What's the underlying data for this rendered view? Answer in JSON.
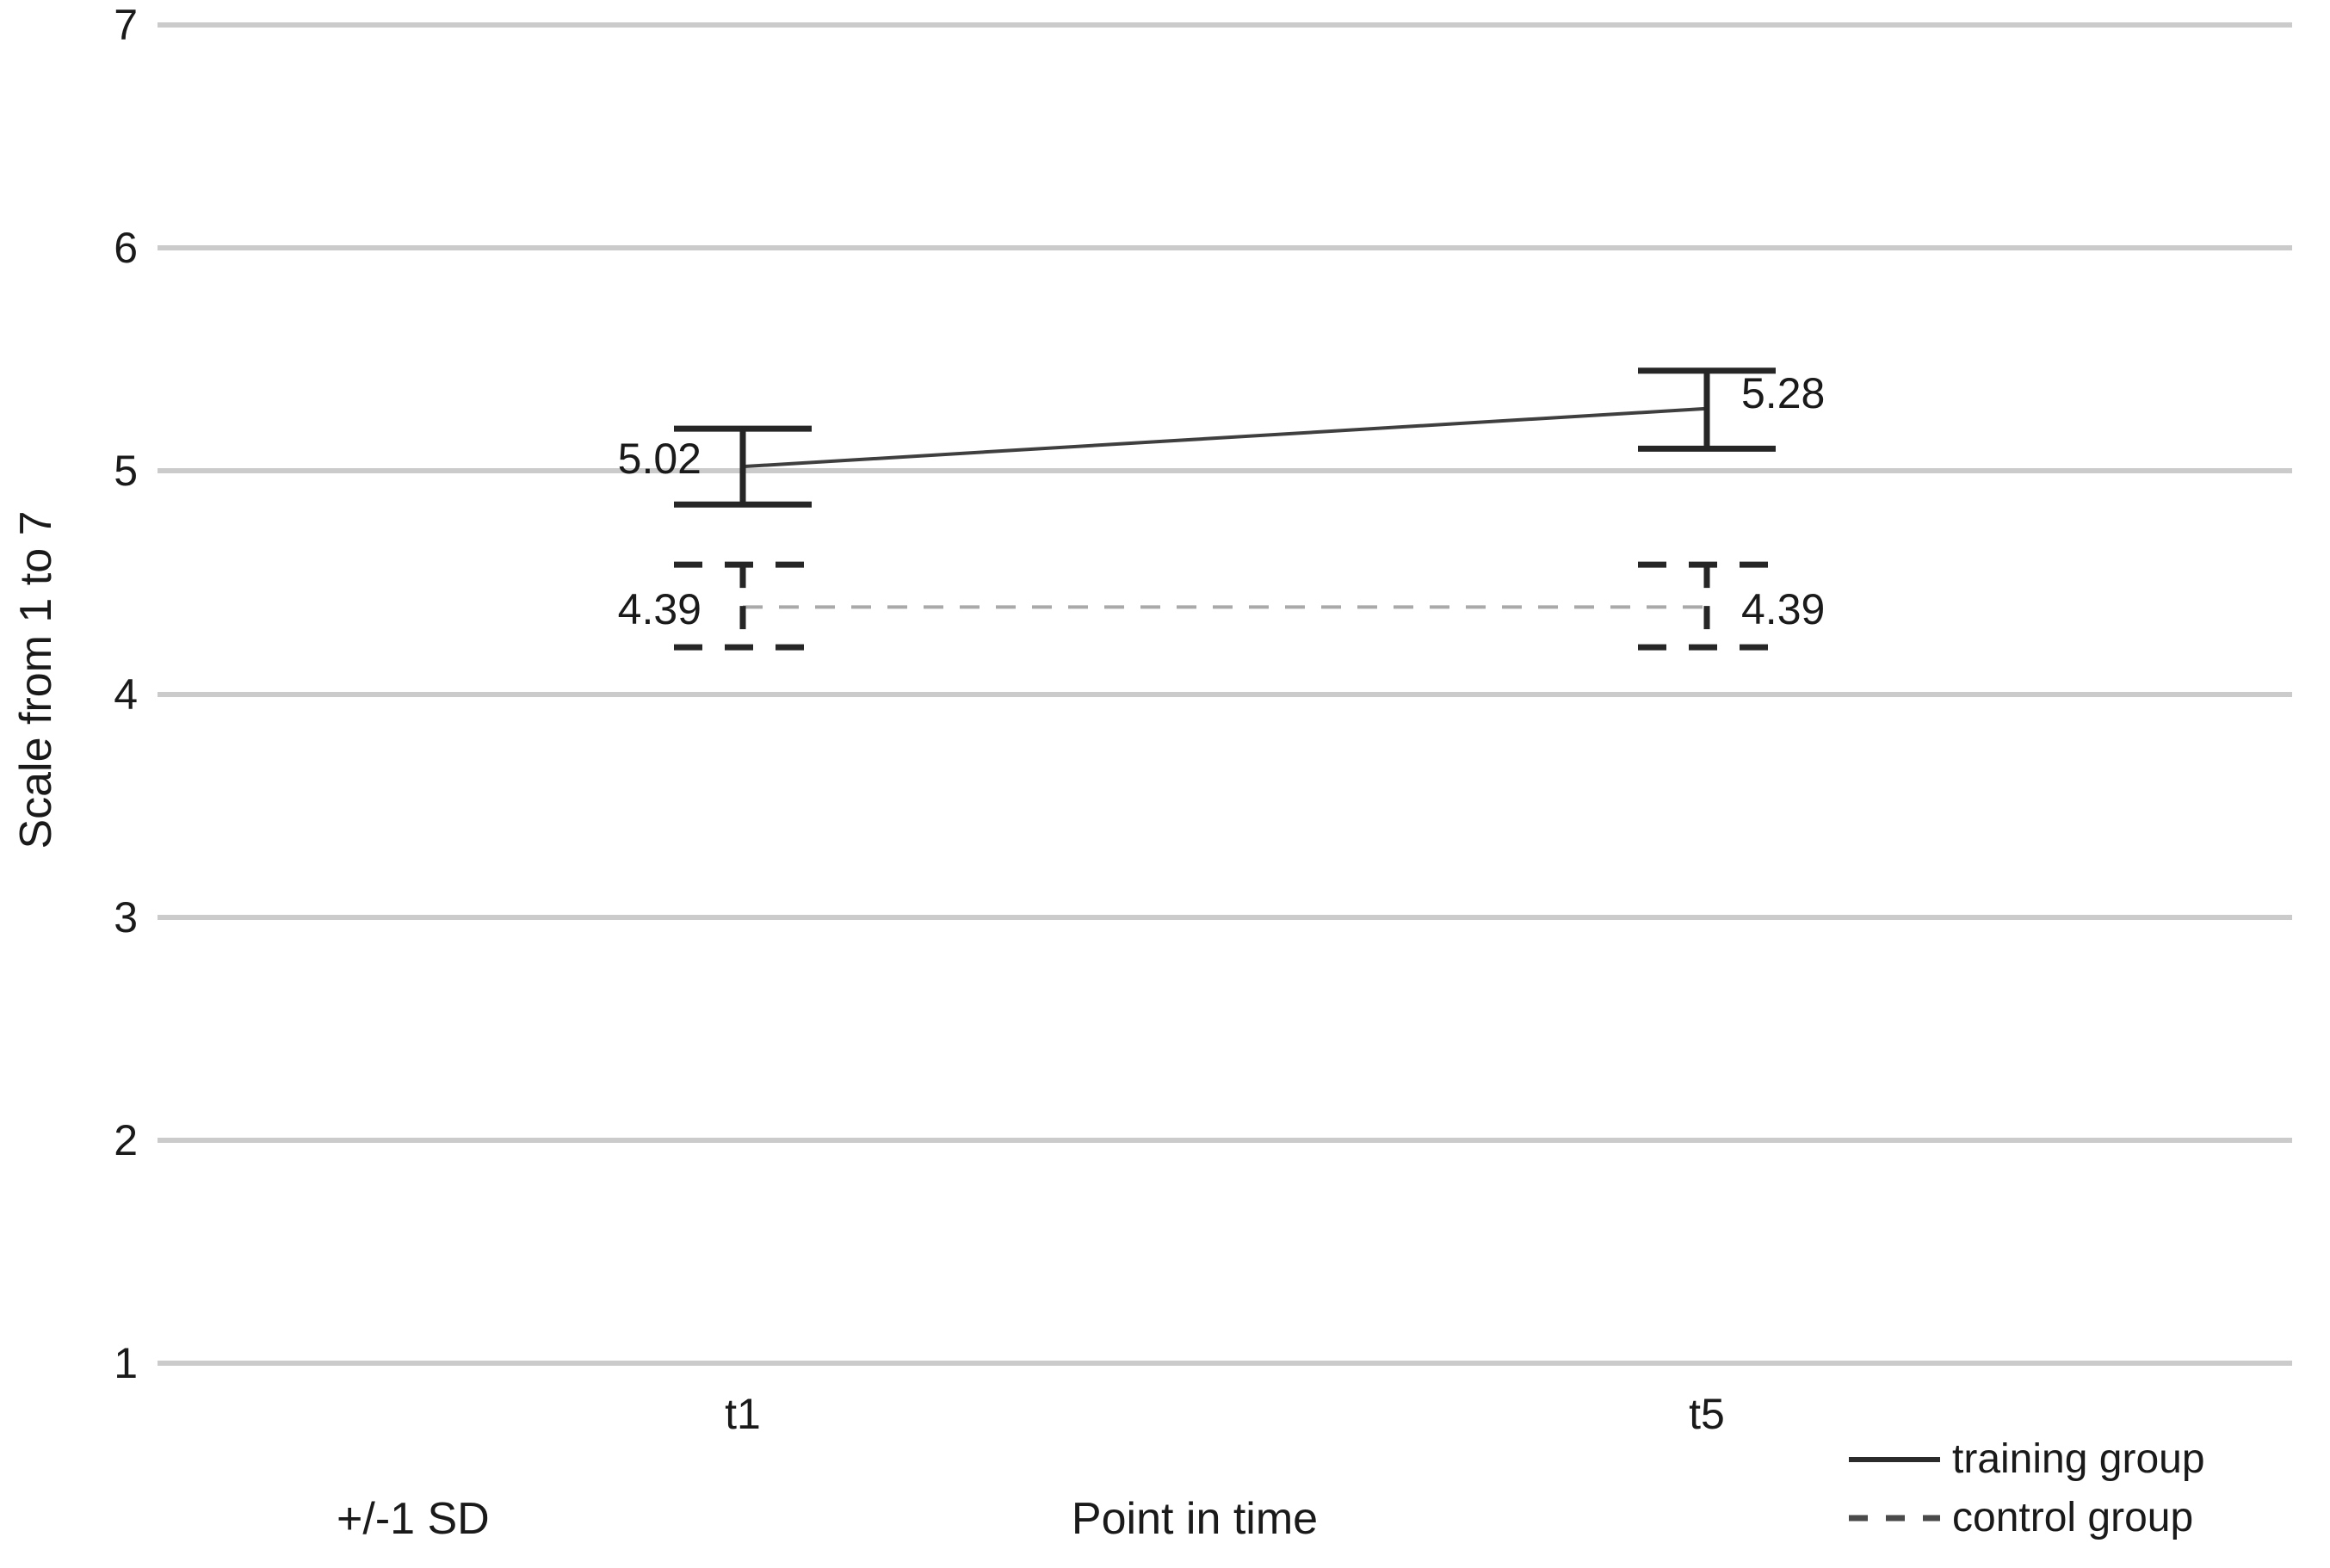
{
  "colors": {
    "text": "#1a1a1a",
    "gridline": "#cbcbcb",
    "error_bar": "#262626",
    "training_line": "#3f3f3f",
    "control_line": "#a9a9a9"
  },
  "chart_data": {
    "type": "line",
    "title": "",
    "xlabel": "Point in time",
    "ylabel": "Scale from 1 to 7",
    "error_note": "+/-1 SD",
    "ylim": [
      1,
      7
    ],
    "yticks": [
      7,
      6,
      5,
      4,
      3,
      2,
      1
    ],
    "x_categories": [
      "t1",
      "t5"
    ],
    "grid": "horizontal-only",
    "legend_position": "bottom-right",
    "series": [
      {
        "name": "training group",
        "style": "solid",
        "color": "#3f3f3f",
        "values": [
          5.02,
          5.28
        ],
        "labels": [
          "5.02",
          "5.28"
        ],
        "label_side": [
          "left",
          "right"
        ],
        "error_high": [
          5.19,
          5.45
        ],
        "error_low": [
          4.85,
          5.1
        ]
      },
      {
        "name": "control group",
        "style": "dashed",
        "color": "#a9a9a9",
        "values": [
          4.39,
          4.39
        ],
        "labels": [
          "4.39",
          "4.39"
        ],
        "label_side": [
          "left",
          "right"
        ],
        "error_high": [
          4.58,
          4.58
        ],
        "error_low": [
          4.21,
          4.21
        ]
      }
    ]
  }
}
